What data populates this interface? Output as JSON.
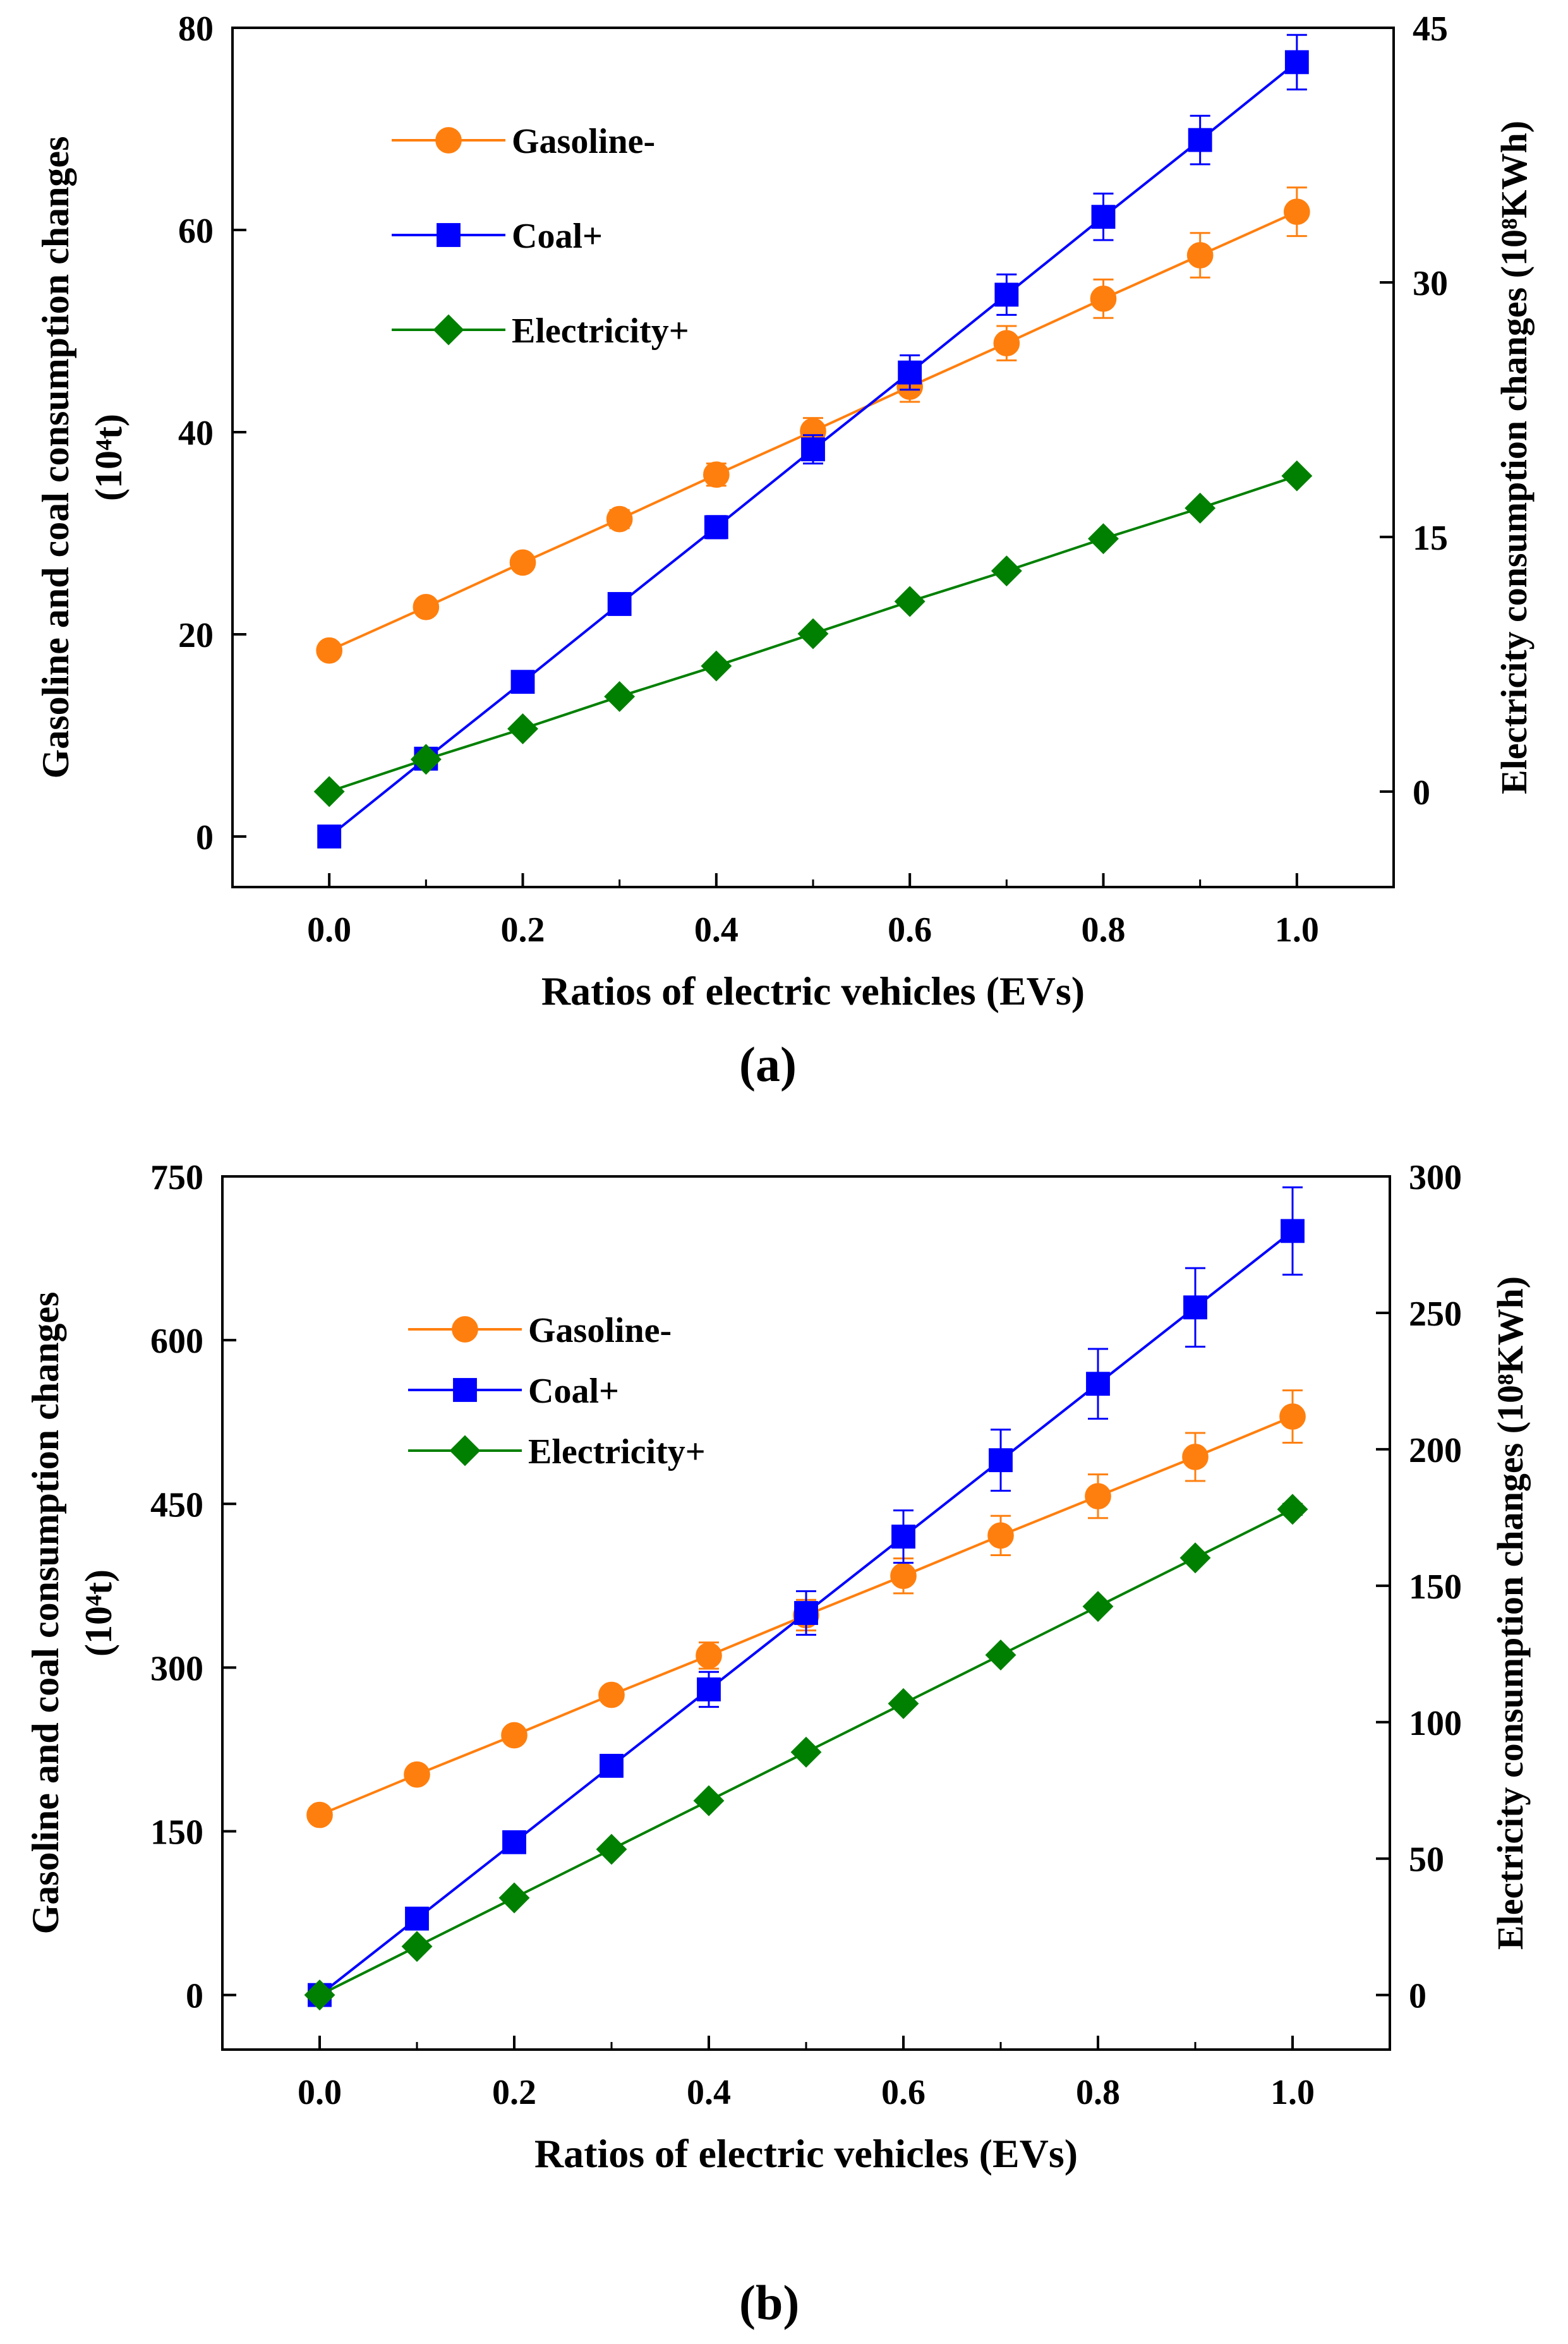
{
  "figure": {
    "panel_labels": [
      "(a)",
      "(b)"
    ]
  },
  "chart_data": [
    {
      "type": "line",
      "panel": "(a)",
      "xlabel": "Ratios of electric vehicles (EVs)",
      "ylabel_left": "Gasoline and coal consumption changes",
      "ylabel_left_unit": "(10⁴t)",
      "ylabel_right": "Electricity consumption changes (10⁸KWh)",
      "x": [
        0.0,
        0.1,
        0.2,
        0.3,
        0.4,
        0.5,
        0.6,
        0.7,
        0.8,
        0.9,
        1.0
      ],
      "xlim": [
        -0.1,
        1.1
      ],
      "xticks": [
        "0.0",
        "0.2",
        "0.4",
        "0.6",
        "0.8",
        "1.0"
      ],
      "xtick_values": [
        0.0,
        0.2,
        0.4,
        0.6,
        0.8,
        1.0
      ],
      "ylim_left": [
        -5,
        80
      ],
      "yticks_left": [
        0,
        20,
        40,
        60,
        80
      ],
      "ylim_right": [
        -5.625,
        45
      ],
      "yticks_right": [
        0,
        15,
        30,
        45
      ],
      "series": [
        {
          "name": "Gasoline-",
          "axis": "left",
          "color": "#ff7f0e",
          "marker": "circle",
          "values": [
            18.4,
            22.7,
            27.1,
            31.4,
            35.8,
            40.1,
            44.5,
            48.8,
            53.2,
            57.5,
            61.8
          ],
          "errors": [
            0,
            0,
            0,
            0.9,
            1.1,
            1.3,
            1.5,
            1.7,
            1.9,
            2.2,
            2.4
          ]
        },
        {
          "name": "Coal+",
          "axis": "left",
          "color": "#0000ff",
          "marker": "square",
          "values": [
            0.0,
            7.7,
            15.3,
            23.0,
            30.6,
            38.3,
            45.9,
            53.6,
            61.3,
            68.9,
            76.6
          ],
          "errors": [
            0,
            0,
            0,
            0,
            1.1,
            1.4,
            1.7,
            2.0,
            2.3,
            2.4,
            2.7
          ]
        },
        {
          "name": "Electricity+",
          "axis": "right",
          "color": "#008000",
          "marker": "diamond",
          "values": [
            0.0,
            1.9,
            3.7,
            5.6,
            7.4,
            9.3,
            11.2,
            13.0,
            14.9,
            16.7,
            18.6
          ],
          "errors": [
            0,
            0,
            0,
            0,
            0,
            0,
            0,
            0,
            0,
            0,
            0
          ]
        }
      ]
    },
    {
      "type": "line",
      "panel": "(b)",
      "xlabel": "Ratios of electric vehicles (EVs)",
      "ylabel_left": "Gasoline and coal consumption changes",
      "ylabel_left_unit": "(10⁴t)",
      "ylabel_right": "Electricity consumption changes (10⁸KWh)",
      "x": [
        0.0,
        0.1,
        0.2,
        0.3,
        0.4,
        0.5,
        0.6,
        0.7,
        0.8,
        0.9,
        1.0
      ],
      "xlim": [
        -0.1,
        1.1
      ],
      "xticks": [
        "0.0",
        "0.2",
        "0.4",
        "0.6",
        "0.8",
        "1.0"
      ],
      "xtick_values": [
        0.0,
        0.2,
        0.4,
        0.6,
        0.8,
        1.0
      ],
      "ylim_left": [
        -50,
        750
      ],
      "yticks_left": [
        0,
        150,
        300,
        450,
        600,
        750
      ],
      "ylim_right": [
        -20,
        300
      ],
      "yticks_right": [
        0,
        50,
        100,
        150,
        200,
        250,
        300
      ],
      "series": [
        {
          "name": "Gasoline-",
          "axis": "left",
          "color": "#ff7f0e",
          "marker": "circle",
          "values": [
            165,
            202,
            238,
            275,
            311,
            348,
            384,
            421,
            457,
            493,
            530
          ],
          "errors": [
            0,
            0,
            0,
            0,
            12,
            14,
            16,
            18,
            20,
            22,
            24
          ]
        },
        {
          "name": "Coal+",
          "axis": "left",
          "color": "#0000ff",
          "marker": "square",
          "values": [
            0,
            70,
            140,
            210,
            280,
            350,
            420,
            490,
            560,
            630,
            700
          ],
          "errors": [
            0,
            0,
            0,
            10,
            16,
            20,
            24,
            28,
            32,
            36,
            40
          ]
        },
        {
          "name": "Electricity+",
          "axis": "right",
          "color": "#008000",
          "marker": "diamond",
          "values": [
            0,
            17.8,
            35.6,
            53.4,
            71.2,
            89.0,
            106.8,
            124.6,
            142.4,
            160.2,
            178.0
          ],
          "errors": [
            0,
            0,
            0,
            0,
            0,
            0,
            0,
            0,
            0,
            0,
            2
          ]
        }
      ]
    }
  ]
}
